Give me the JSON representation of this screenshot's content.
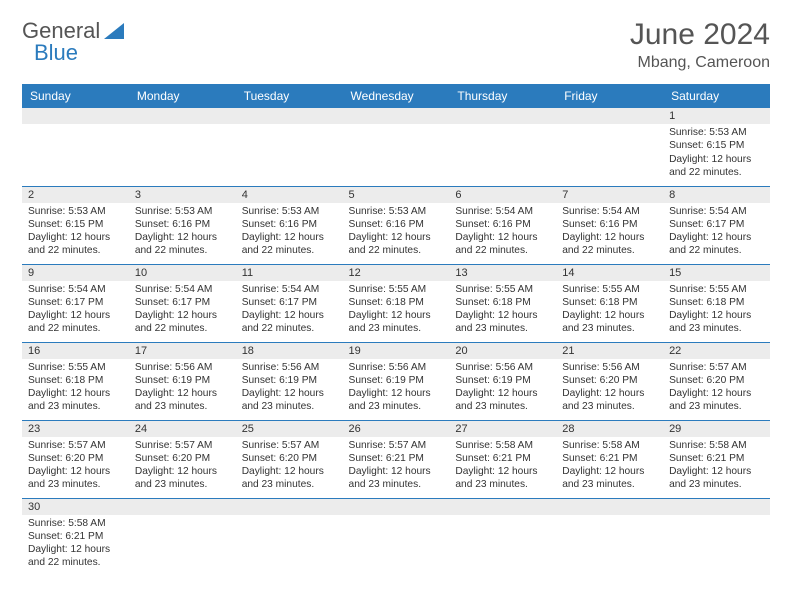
{
  "brand": {
    "part1": "General",
    "part2": "Blue"
  },
  "title": "June 2024",
  "location": "Mbang, Cameroon",
  "colors": {
    "header_bg": "#2b7bbd",
    "header_text": "#ffffff",
    "daynum_bg": "#ececec",
    "row_divider": "#2b7bbd",
    "body_text": "#333333",
    "title_text": "#555555"
  },
  "weekdays": [
    "Sunday",
    "Monday",
    "Tuesday",
    "Wednesday",
    "Thursday",
    "Friday",
    "Saturday"
  ],
  "weeks": [
    [
      {
        "n": "",
        "lines": []
      },
      {
        "n": "",
        "lines": []
      },
      {
        "n": "",
        "lines": []
      },
      {
        "n": "",
        "lines": []
      },
      {
        "n": "",
        "lines": []
      },
      {
        "n": "",
        "lines": []
      },
      {
        "n": "1",
        "lines": [
          "Sunrise: 5:53 AM",
          "Sunset: 6:15 PM",
          "Daylight: 12 hours",
          "and 22 minutes."
        ]
      }
    ],
    [
      {
        "n": "2",
        "lines": [
          "Sunrise: 5:53 AM",
          "Sunset: 6:15 PM",
          "Daylight: 12 hours",
          "and 22 minutes."
        ]
      },
      {
        "n": "3",
        "lines": [
          "Sunrise: 5:53 AM",
          "Sunset: 6:16 PM",
          "Daylight: 12 hours",
          "and 22 minutes."
        ]
      },
      {
        "n": "4",
        "lines": [
          "Sunrise: 5:53 AM",
          "Sunset: 6:16 PM",
          "Daylight: 12 hours",
          "and 22 minutes."
        ]
      },
      {
        "n": "5",
        "lines": [
          "Sunrise: 5:53 AM",
          "Sunset: 6:16 PM",
          "Daylight: 12 hours",
          "and 22 minutes."
        ]
      },
      {
        "n": "6",
        "lines": [
          "Sunrise: 5:54 AM",
          "Sunset: 6:16 PM",
          "Daylight: 12 hours",
          "and 22 minutes."
        ]
      },
      {
        "n": "7",
        "lines": [
          "Sunrise: 5:54 AM",
          "Sunset: 6:16 PM",
          "Daylight: 12 hours",
          "and 22 minutes."
        ]
      },
      {
        "n": "8",
        "lines": [
          "Sunrise: 5:54 AM",
          "Sunset: 6:17 PM",
          "Daylight: 12 hours",
          "and 22 minutes."
        ]
      }
    ],
    [
      {
        "n": "9",
        "lines": [
          "Sunrise: 5:54 AM",
          "Sunset: 6:17 PM",
          "Daylight: 12 hours",
          "and 22 minutes."
        ]
      },
      {
        "n": "10",
        "lines": [
          "Sunrise: 5:54 AM",
          "Sunset: 6:17 PM",
          "Daylight: 12 hours",
          "and 22 minutes."
        ]
      },
      {
        "n": "11",
        "lines": [
          "Sunrise: 5:54 AM",
          "Sunset: 6:17 PM",
          "Daylight: 12 hours",
          "and 22 minutes."
        ]
      },
      {
        "n": "12",
        "lines": [
          "Sunrise: 5:55 AM",
          "Sunset: 6:18 PM",
          "Daylight: 12 hours",
          "and 23 minutes."
        ]
      },
      {
        "n": "13",
        "lines": [
          "Sunrise: 5:55 AM",
          "Sunset: 6:18 PM",
          "Daylight: 12 hours",
          "and 23 minutes."
        ]
      },
      {
        "n": "14",
        "lines": [
          "Sunrise: 5:55 AM",
          "Sunset: 6:18 PM",
          "Daylight: 12 hours",
          "and 23 minutes."
        ]
      },
      {
        "n": "15",
        "lines": [
          "Sunrise: 5:55 AM",
          "Sunset: 6:18 PM",
          "Daylight: 12 hours",
          "and 23 minutes."
        ]
      }
    ],
    [
      {
        "n": "16",
        "lines": [
          "Sunrise: 5:55 AM",
          "Sunset: 6:18 PM",
          "Daylight: 12 hours",
          "and 23 minutes."
        ]
      },
      {
        "n": "17",
        "lines": [
          "Sunrise: 5:56 AM",
          "Sunset: 6:19 PM",
          "Daylight: 12 hours",
          "and 23 minutes."
        ]
      },
      {
        "n": "18",
        "lines": [
          "Sunrise: 5:56 AM",
          "Sunset: 6:19 PM",
          "Daylight: 12 hours",
          "and 23 minutes."
        ]
      },
      {
        "n": "19",
        "lines": [
          "Sunrise: 5:56 AM",
          "Sunset: 6:19 PM",
          "Daylight: 12 hours",
          "and 23 minutes."
        ]
      },
      {
        "n": "20",
        "lines": [
          "Sunrise: 5:56 AM",
          "Sunset: 6:19 PM",
          "Daylight: 12 hours",
          "and 23 minutes."
        ]
      },
      {
        "n": "21",
        "lines": [
          "Sunrise: 5:56 AM",
          "Sunset: 6:20 PM",
          "Daylight: 12 hours",
          "and 23 minutes."
        ]
      },
      {
        "n": "22",
        "lines": [
          "Sunrise: 5:57 AM",
          "Sunset: 6:20 PM",
          "Daylight: 12 hours",
          "and 23 minutes."
        ]
      }
    ],
    [
      {
        "n": "23",
        "lines": [
          "Sunrise: 5:57 AM",
          "Sunset: 6:20 PM",
          "Daylight: 12 hours",
          "and 23 minutes."
        ]
      },
      {
        "n": "24",
        "lines": [
          "Sunrise: 5:57 AM",
          "Sunset: 6:20 PM",
          "Daylight: 12 hours",
          "and 23 minutes."
        ]
      },
      {
        "n": "25",
        "lines": [
          "Sunrise: 5:57 AM",
          "Sunset: 6:20 PM",
          "Daylight: 12 hours",
          "and 23 minutes."
        ]
      },
      {
        "n": "26",
        "lines": [
          "Sunrise: 5:57 AM",
          "Sunset: 6:21 PM",
          "Daylight: 12 hours",
          "and 23 minutes."
        ]
      },
      {
        "n": "27",
        "lines": [
          "Sunrise: 5:58 AM",
          "Sunset: 6:21 PM",
          "Daylight: 12 hours",
          "and 23 minutes."
        ]
      },
      {
        "n": "28",
        "lines": [
          "Sunrise: 5:58 AM",
          "Sunset: 6:21 PM",
          "Daylight: 12 hours",
          "and 23 minutes."
        ]
      },
      {
        "n": "29",
        "lines": [
          "Sunrise: 5:58 AM",
          "Sunset: 6:21 PM",
          "Daylight: 12 hours",
          "and 23 minutes."
        ]
      }
    ],
    [
      {
        "n": "30",
        "lines": [
          "Sunrise: 5:58 AM",
          "Sunset: 6:21 PM",
          "Daylight: 12 hours",
          "and 22 minutes."
        ]
      },
      {
        "n": "",
        "lines": []
      },
      {
        "n": "",
        "lines": []
      },
      {
        "n": "",
        "lines": []
      },
      {
        "n": "",
        "lines": []
      },
      {
        "n": "",
        "lines": []
      },
      {
        "n": "",
        "lines": []
      }
    ]
  ]
}
